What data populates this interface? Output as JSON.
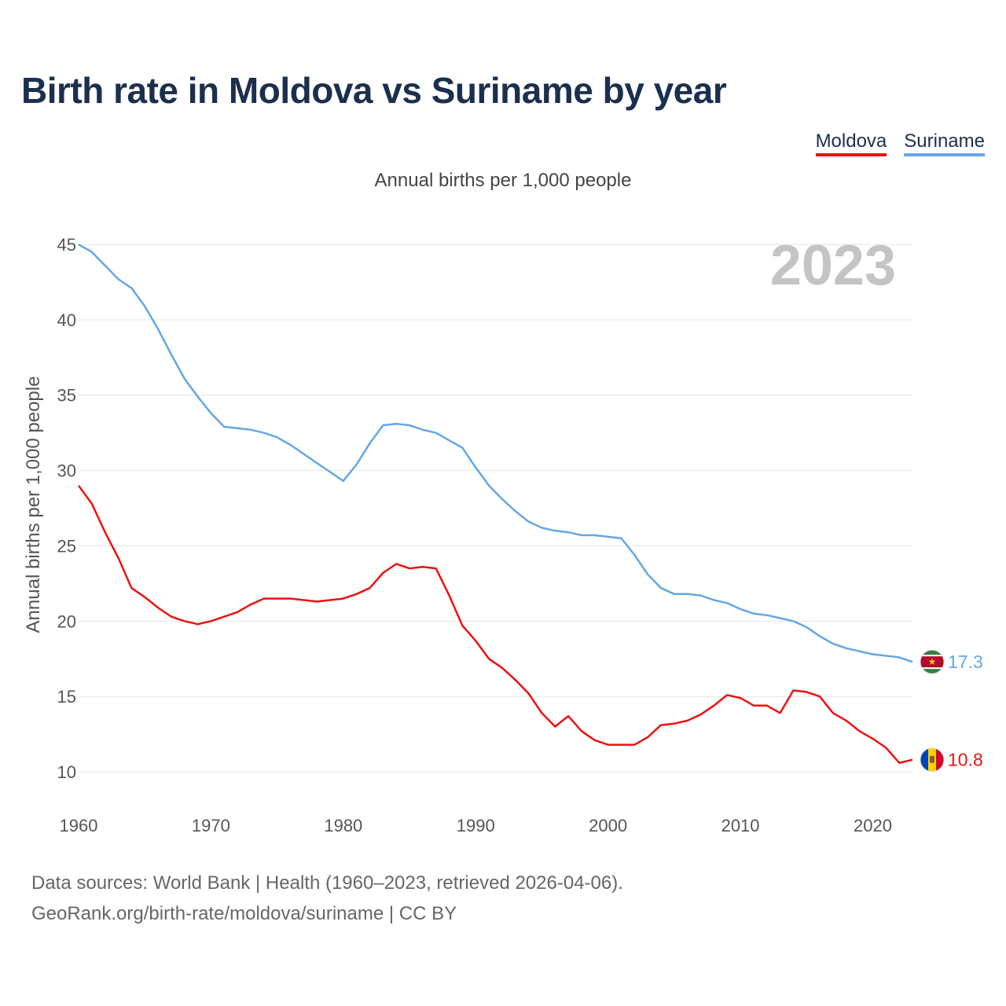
{
  "title": "Birth rate in Moldova vs Suriname by year",
  "subtitle": "Annual births per 1,000 people",
  "legend": [
    {
      "label": "Moldova",
      "color": "#ee1111"
    },
    {
      "label": "Suriname",
      "color": "#63a7e6"
    }
  ],
  "year_watermark": "2023",
  "footer": {
    "line1": "Data sources: World Bank | Health (1960–2023, retrieved 2026-04-06).",
    "line2": "GeoRank.org/birth-rate/moldova/suriname | CC BY"
  },
  "chart_data": {
    "type": "line",
    "title": "Birth rate in Moldova vs Suriname by year",
    "ylabel": "Annual births per 1,000 people",
    "xlabel": "",
    "xlim": [
      1960,
      2023
    ],
    "ylim": [
      7.5,
      46.2
    ],
    "x_ticks": [
      1960,
      1970,
      1980,
      1990,
      2000,
      2010,
      2020
    ],
    "y_ticks": [
      10,
      15,
      20,
      25,
      30,
      35,
      40,
      45
    ],
    "grid": true,
    "x": [
      1960,
      1961,
      1962,
      1963,
      1964,
      1965,
      1966,
      1967,
      1968,
      1969,
      1970,
      1971,
      1972,
      1973,
      1974,
      1975,
      1976,
      1977,
      1978,
      1979,
      1980,
      1981,
      1982,
      1983,
      1984,
      1985,
      1986,
      1987,
      1988,
      1989,
      1990,
      1991,
      1992,
      1993,
      1994,
      1995,
      1996,
      1997,
      1998,
      1999,
      2000,
      2001,
      2002,
      2003,
      2004,
      2005,
      2006,
      2007,
      2008,
      2009,
      2010,
      2011,
      2012,
      2013,
      2014,
      2015,
      2016,
      2017,
      2018,
      2019,
      2020,
      2021,
      2022,
      2023
    ],
    "series": [
      {
        "name": "Moldova",
        "color": "#ee1111",
        "end_label": "10.8",
        "values": [
          29.0,
          27.8,
          25.9,
          24.2,
          22.2,
          21.6,
          20.9,
          20.3,
          20.0,
          19.8,
          20.0,
          20.3,
          20.6,
          21.1,
          21.5,
          21.5,
          21.5,
          21.4,
          21.3,
          21.4,
          21.5,
          21.8,
          22.2,
          23.2,
          23.8,
          23.5,
          23.6,
          23.5,
          21.7,
          19.7,
          18.7,
          17.5,
          16.9,
          16.1,
          15.2,
          13.9,
          13.0,
          13.7,
          12.7,
          12.1,
          11.8,
          11.8,
          11.8,
          12.3,
          13.1,
          13.2,
          13.4,
          13.8,
          14.4,
          15.1,
          14.9,
          14.4,
          14.4,
          13.9,
          15.4,
          15.3,
          15.0,
          13.9,
          13.4,
          12.7,
          12.2,
          11.6,
          10.6,
          10.8
        ]
      },
      {
        "name": "Suriname",
        "color": "#63a7e6",
        "end_label": "17.3",
        "values": [
          45.0,
          44.5,
          43.6,
          42.7,
          42.1,
          40.9,
          39.4,
          37.7,
          36.1,
          34.9,
          33.8,
          32.9,
          32.8,
          32.7,
          32.5,
          32.2,
          31.7,
          31.1,
          30.5,
          29.9,
          29.3,
          30.4,
          31.8,
          33.0,
          33.1,
          33.0,
          32.7,
          32.5,
          32.0,
          31.5,
          30.2,
          29.0,
          28.1,
          27.3,
          26.6,
          26.2,
          26.0,
          25.9,
          25.7,
          25.7,
          25.6,
          25.5,
          24.4,
          23.1,
          22.2,
          21.8,
          21.8,
          21.7,
          21.4,
          21.2,
          20.8,
          20.5,
          20.4,
          20.2,
          20.0,
          19.6,
          19.0,
          18.5,
          18.2,
          18.0,
          17.8,
          17.7,
          17.6,
          17.3
        ]
      }
    ]
  }
}
